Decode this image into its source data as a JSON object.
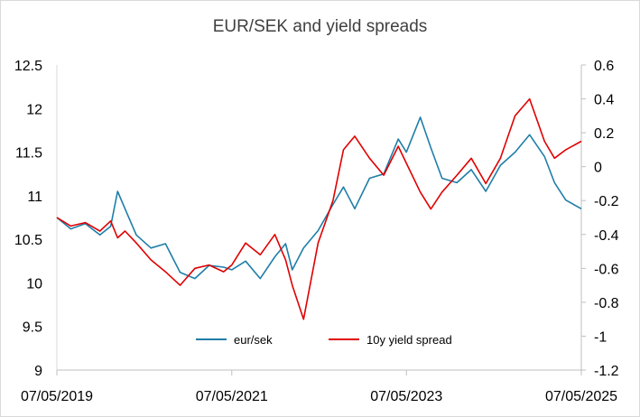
{
  "chart_data": {
    "type": "line",
    "title": "EUR/SEK and yield spreads",
    "xlabel": "",
    "ylabel": "",
    "y2label": "",
    "x_ticks": [
      "07/05/2019",
      "07/05/2021",
      "07/05/2023",
      "07/05/2025"
    ],
    "x_range": [
      "07/05/2019",
      "07/05/2025"
    ],
    "ylim": [
      9,
      12.5
    ],
    "y_ticks": [
      "9",
      "9.5",
      "10",
      "10.5",
      "11",
      "11.5",
      "12",
      "12.5"
    ],
    "y2lim": [
      -1.2,
      0.6
    ],
    "y2_ticks": [
      "-1.2",
      "-1",
      "-0.8",
      "-0.6",
      "-0.4",
      "-0.2",
      "0",
      "0.2",
      "0.4",
      "0.6"
    ],
    "grid": false,
    "legend_position": "bottom-center",
    "series": [
      {
        "name": "eur/sek",
        "axis": "left",
        "color": "#1f7ea8",
        "x": [
          "07/05/2019",
          "09/01/2019",
          "11/01/2019",
          "01/01/2020",
          "02/15/2020",
          "03/15/2020",
          "04/15/2020",
          "06/01/2020",
          "08/01/2020",
          "10/01/2020",
          "12/01/2020",
          "02/01/2021",
          "04/01/2021",
          "06/01/2021",
          "07/05/2021",
          "09/01/2021",
          "11/01/2021",
          "01/01/2022",
          "02/15/2022",
          "03/15/2022",
          "05/01/2022",
          "07/01/2022",
          "09/01/2022",
          "10/15/2022",
          "12/01/2022",
          "02/01/2023",
          "04/01/2023",
          "06/01/2023",
          "07/05/2023",
          "09/01/2023",
          "10/15/2023",
          "12/01/2023",
          "02/01/2024",
          "04/01/2024",
          "06/01/2024",
          "08/01/2024",
          "10/01/2024",
          "12/01/2024",
          "02/01/2025",
          "03/15/2025",
          "05/01/2025",
          "07/05/2025"
        ],
        "values": [
          10.75,
          10.62,
          10.68,
          10.55,
          10.65,
          11.05,
          10.85,
          10.55,
          10.4,
          10.45,
          10.12,
          10.05,
          10.2,
          10.18,
          10.15,
          10.25,
          10.05,
          10.3,
          10.45,
          10.15,
          10.4,
          10.6,
          10.9,
          11.1,
          10.85,
          11.2,
          11.25,
          11.65,
          11.5,
          11.9,
          11.55,
          11.2,
          11.15,
          11.3,
          11.05,
          11.35,
          11.5,
          11.7,
          11.45,
          11.15,
          10.95,
          10.85
        ]
      },
      {
        "name": "10y yield spread",
        "axis": "right",
        "color": "#e00000",
        "x": [
          "07/05/2019",
          "09/01/2019",
          "11/01/2019",
          "01/01/2020",
          "02/15/2020",
          "03/15/2020",
          "04/15/2020",
          "06/01/2020",
          "08/01/2020",
          "10/01/2020",
          "12/01/2020",
          "02/01/2021",
          "04/01/2021",
          "06/01/2021",
          "07/05/2021",
          "09/01/2021",
          "11/01/2021",
          "01/01/2022",
          "02/15/2022",
          "03/15/2022",
          "05/01/2022",
          "07/01/2022",
          "09/01/2022",
          "10/15/2022",
          "12/01/2022",
          "02/01/2023",
          "04/01/2023",
          "06/01/2023",
          "07/05/2023",
          "09/01/2023",
          "10/15/2023",
          "12/01/2023",
          "02/01/2024",
          "04/01/2024",
          "06/01/2024",
          "08/01/2024",
          "10/01/2024",
          "12/01/2024",
          "02/01/2025",
          "03/15/2025",
          "05/01/2025",
          "07/05/2025"
        ],
        "values": [
          -0.3,
          -0.35,
          -0.33,
          -0.38,
          -0.32,
          -0.42,
          -0.38,
          -0.45,
          -0.55,
          -0.62,
          -0.7,
          -0.6,
          -0.58,
          -0.62,
          -0.58,
          -0.45,
          -0.52,
          -0.4,
          -0.55,
          -0.7,
          -0.9,
          -0.45,
          -0.2,
          0.1,
          0.18,
          0.05,
          -0.05,
          0.12,
          0.02,
          -0.15,
          -0.25,
          -0.15,
          -0.05,
          0.05,
          -0.1,
          0.05,
          0.3,
          0.4,
          0.15,
          0.05,
          0.1,
          0.15
        ]
      }
    ]
  }
}
